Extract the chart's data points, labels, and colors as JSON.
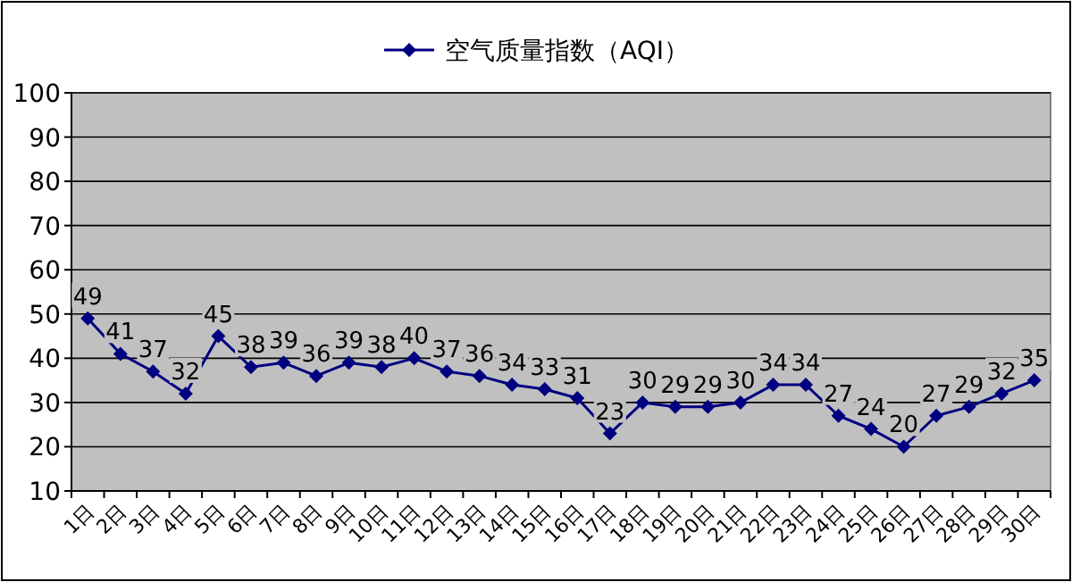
{
  "chart_data": {
    "type": "line",
    "categories": [
      "1日",
      "2日",
      "3日",
      "4日",
      "5日",
      "6日",
      "7日",
      "8日",
      "9日",
      "10日",
      "11日",
      "12日",
      "13日",
      "14日",
      "15日",
      "16日",
      "17日",
      "18日",
      "19日",
      "20日",
      "21日",
      "22日",
      "23日",
      "24日",
      "25日",
      "26日",
      "27日",
      "28日",
      "29日",
      "30日"
    ],
    "series": [
      {
        "name": "空气质量指数（AQI）",
        "color": "#000080",
        "values": [
          49,
          41,
          37,
          32,
          45,
          38,
          39,
          36,
          39,
          38,
          40,
          37,
          36,
          34,
          33,
          31,
          23,
          30,
          29,
          29,
          30,
          34,
          34,
          27,
          24,
          20,
          27,
          29,
          32,
          35
        ]
      }
    ],
    "ylim": [
      10,
      100
    ],
    "yticks": [
      10,
      20,
      30,
      40,
      50,
      60,
      70,
      80,
      90,
      100
    ],
    "grid": "y",
    "legend": "top",
    "marker": "diamond",
    "data_labels": true
  }
}
